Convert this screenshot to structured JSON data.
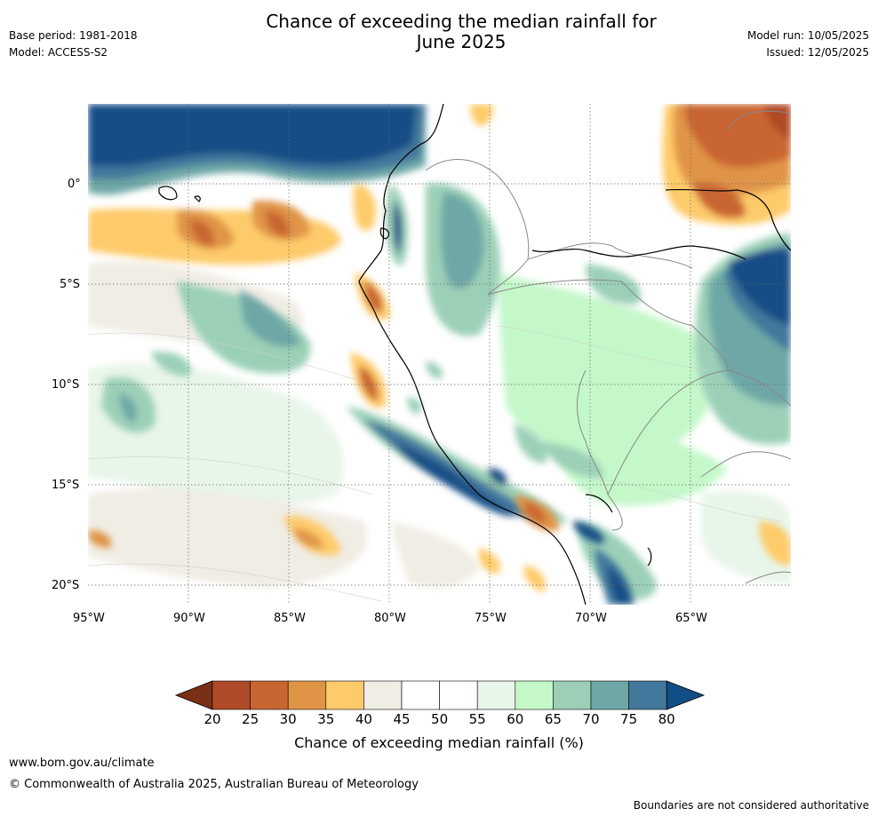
{
  "header": {
    "base_period": "Base period: 1981-2018",
    "model": "Model: ACCESS-S2",
    "title_line1": "Chance of exceeding the median rainfall for",
    "title_line2": "June 2025",
    "model_run": "Model run: 10/05/2025",
    "issued": "Issued: 12/05/2025"
  },
  "map": {
    "lat_labels": [
      "0°",
      "5°S",
      "10°S",
      "15°S",
      "20°S"
    ],
    "lon_labels": [
      "95°W",
      "90°W",
      "85°W",
      "80°W",
      "75°W",
      "70°W",
      "65°W"
    ],
    "lon_range": [
      -95,
      -60
    ],
    "lat_range": [
      4,
      -21
    ]
  },
  "colorbar": {
    "ticks": [
      "20",
      "25",
      "30",
      "35",
      "40",
      "45",
      "50",
      "55",
      "60",
      "65",
      "70",
      "75",
      "80"
    ],
    "colors": [
      "#7a3015",
      "#b04a28",
      "#c96530",
      "#e09446",
      "#fecb6b",
      "#f0ede4",
      "#ffffff",
      "#ffffff",
      "#e8f5e9",
      "#c4f8c9",
      "#9bd0b7",
      "#6ea7a6",
      "#43789c",
      "#134d86"
    ],
    "label": "Chance of exceeding median rainfall (%)"
  },
  "footer": {
    "url": "www.bom.gov.au/climate",
    "copyright": "© Commonwealth of Australia 2025, Australian Bureau of Meteorology",
    "disclaimer": "Boundaries are not considered authoritative"
  }
}
